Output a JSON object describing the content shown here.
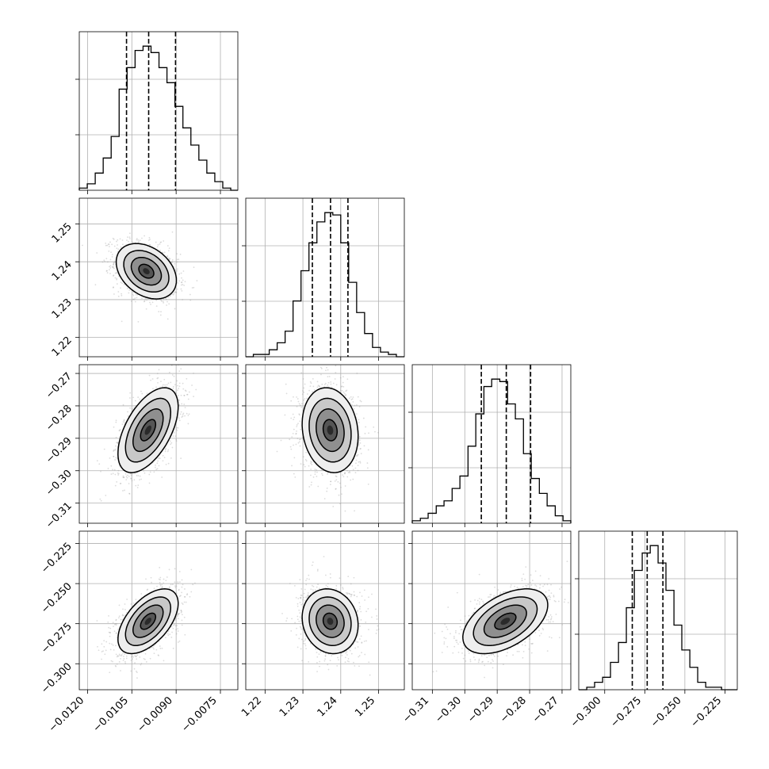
{
  "chart_data": {
    "type": "corner",
    "grid": true,
    "parameters": [
      {
        "ticks": [
          -0.012,
          -0.0105,
          -0.009,
          -0.0075
        ],
        "tick_labels": [
          "−0.0120",
          "−0.0105",
          "−0.0090",
          "−0.0075"
        ],
        "range": [
          -0.01228,
          -0.00691
        ]
      },
      {
        "ticks": [
          1.22,
          1.23,
          1.24,
          1.25
        ],
        "tick_labels": [
          "1.22",
          "1.23",
          "1.24",
          "1.25"
        ],
        "range": [
          1.2149,
          1.2568
        ]
      },
      {
        "ticks": [
          -0.31,
          -0.3,
          -0.29,
          -0.28,
          -0.27
        ],
        "tick_labels": [
          "−0.31",
          "−0.30",
          "−0.29",
          "−0.28",
          "−0.27"
        ],
        "range": [
          -0.3162,
          -0.2673
        ]
      },
      {
        "ticks": [
          -0.3,
          -0.275,
          -0.25,
          -0.225
        ],
        "tick_labels": [
          "−0.300",
          "−0.275",
          "−0.250",
          "−0.225"
        ],
        "range": [
          -0.3162,
          -0.2173
        ]
      }
    ],
    "histograms": [
      {
        "param": 0,
        "edges": [
          -0.01228,
          -0.01201,
          -0.01174,
          -0.01147,
          -0.0112,
          -0.01093,
          -0.01066,
          -0.01039,
          -0.01012,
          -0.00985,
          -0.00958,
          -0.00931,
          -0.00904,
          -0.00877,
          -0.0085,
          -0.00823,
          -0.00796,
          -0.00769,
          -0.00742,
          -0.00715,
          -0.00691
        ],
        "counts": [
          1,
          3,
          8,
          15,
          25,
          47,
          57,
          65,
          67,
          64,
          57,
          50,
          39,
          29,
          21,
          14,
          8,
          4,
          1,
          0
        ],
        "quantiles": [
          -0.01068,
          -0.00993,
          -0.00902
        ]
      },
      {
        "param": 1,
        "edges": [
          1.2149,
          1.2169,
          1.219,
          1.2211,
          1.2232,
          1.2253,
          1.2274,
          1.2295,
          1.2316,
          1.2337,
          1.2358,
          1.2379,
          1.24,
          1.2421,
          1.2442,
          1.2463,
          1.2484,
          1.2505,
          1.2526,
          1.2547,
          1.2568
        ],
        "counts": [
          0,
          1,
          1,
          3,
          6,
          11,
          24,
          37,
          49,
          58,
          62,
          61,
          49,
          32,
          19,
          10,
          4,
          2,
          1,
          0
        ],
        "quantiles": [
          1.2325,
          1.2373,
          1.2419
        ]
      },
      {
        "param": 2,
        "edges": [
          -0.3162,
          -0.3137,
          -0.3113,
          -0.3088,
          -0.3064,
          -0.3039,
          -0.3015,
          -0.299,
          -0.2966,
          -0.2941,
          -0.2917,
          -0.2892,
          -0.2868,
          -0.2844,
          -0.2819,
          -0.2795,
          -0.277,
          -0.2746,
          -0.2721,
          -0.2697,
          -0.2673
        ],
        "counts": [
          1,
          2,
          4,
          7,
          9,
          14,
          19,
          31,
          44,
          55,
          58,
          57,
          48,
          42,
          28,
          18,
          12,
          7,
          3,
          1
        ],
        "quantiles": [
          -0.2949,
          -0.2872,
          -0.2797
        ]
      },
      {
        "param": 3,
        "edges": [
          -0.3162,
          -0.3112,
          -0.3063,
          -0.3013,
          -0.2964,
          -0.2914,
          -0.2865,
          -0.2815,
          -0.2766,
          -0.2716,
          -0.2667,
          -0.2618,
          -0.2568,
          -0.2519,
          -0.2469,
          -0.242,
          -0.237,
          -0.2321,
          -0.2271,
          -0.2222,
          -0.2173
        ],
        "counts": [
          0,
          1,
          3,
          5,
          11,
          19,
          33,
          48,
          55,
          58,
          51,
          40,
          26,
          16,
          9,
          3,
          1,
          1,
          0,
          0
        ],
        "quantiles": [
          -0.2828,
          -0.2735,
          -0.2637
        ]
      }
    ],
    "pairs": [
      {
        "x": 0,
        "y": 1,
        "center": [
          -0.01001,
          1.2375
        ],
        "sigma": [
          0.00051,
          0.00366
        ],
        "rho": -0.33
      },
      {
        "x": 0,
        "y": 2,
        "center": [
          -0.00995,
          -0.2875
        ],
        "sigma": [
          0.00051,
          0.00655
        ],
        "rho": 0.55
      },
      {
        "x": 1,
        "y": 2,
        "center": [
          1.2372,
          -0.2875
        ],
        "sigma": [
          0.0037,
          0.00655
        ],
        "rho": -0.14
      },
      {
        "x": 0,
        "y": 3,
        "center": [
          -0.00995,
          -0.2735
        ],
        "sigma": [
          0.00051,
          0.0101
        ],
        "rho": 0.55
      },
      {
        "x": 1,
        "y": 3,
        "center": [
          1.2372,
          -0.2735
        ],
        "sigma": [
          0.0037,
          0.0101
        ],
        "rho": -0.12
      },
      {
        "x": 2,
        "y": 3,
        "center": [
          -0.2875,
          -0.2735
        ],
        "sigma": [
          0.00655,
          0.0101
        ],
        "rho": 0.5
      }
    ],
    "contour_levels": [
      0.5,
      1.0,
      1.5,
      2.0
    ]
  }
}
